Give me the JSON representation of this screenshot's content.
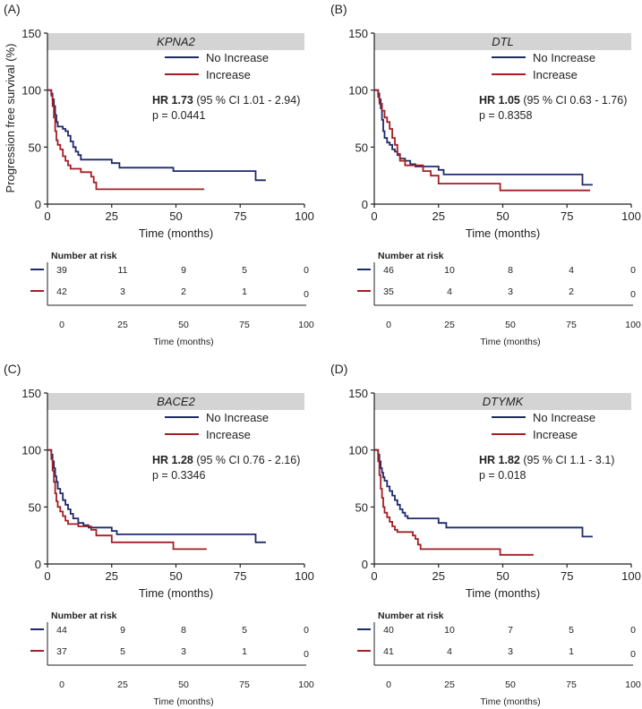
{
  "colors": {
    "no_increase": "#1f2a6b",
    "increase": "#a31f24",
    "header_bg": "#d4d4d4",
    "axis": "#222222"
  },
  "common": {
    "ylabel": "Progression free survival (%)",
    "xlabel": "Time (months)",
    "risk_title": "Number at risk",
    "risk_xlabel": "Time (months)",
    "legend_no_increase": "No Increase",
    "legend_increase": "Increase"
  },
  "chart_data": [
    {
      "type": "line",
      "panel_label": "(A)",
      "title": "KPNA2",
      "xlim": [
        0,
        100
      ],
      "ylim": [
        0,
        150
      ],
      "xticks": [
        "0",
        "25",
        "50",
        "75",
        "100"
      ],
      "yticks": [
        "0",
        "50",
        "100",
        "150"
      ],
      "hr_label": "HR 1.73",
      "hr_ci": "(95 % CI 1.01 - 2.94)",
      "p_text": "p = 0.0441",
      "series": [
        {
          "name": "No Increase",
          "points": [
            [
              0,
              100
            ],
            [
              1,
              100
            ],
            [
              1.5,
              97
            ],
            [
              2,
              92
            ],
            [
              2.5,
              86
            ],
            [
              3,
              78
            ],
            [
              3.5,
              72
            ],
            [
              4,
              68
            ],
            [
              5,
              68
            ],
            [
              6,
              66
            ],
            [
              7,
              64
            ],
            [
              8,
              60
            ],
            [
              9,
              55
            ],
            [
              10,
              50
            ],
            [
              11,
              46
            ],
            [
              12,
              43
            ],
            [
              13,
              39
            ],
            [
              15,
              39
            ],
            [
              18,
              39
            ],
            [
              20,
              39
            ],
            [
              24,
              39
            ],
            [
              25,
              36
            ],
            [
              28,
              32
            ],
            [
              40,
              32
            ],
            [
              48,
              32
            ],
            [
              49,
              29
            ],
            [
              60,
              29
            ],
            [
              70,
              29
            ],
            [
              80,
              29
            ],
            [
              81,
              21
            ],
            [
              85,
              21
            ]
          ]
        },
        {
          "name": "Increase",
          "points": [
            [
              0,
              100
            ],
            [
              1,
              100
            ],
            [
              1.5,
              95
            ],
            [
              2,
              86
            ],
            [
              2.5,
              76
            ],
            [
              3,
              64
            ],
            [
              3.5,
              56
            ],
            [
              4,
              52
            ],
            [
              5,
              48
            ],
            [
              6,
              42
            ],
            [
              7,
              38
            ],
            [
              8,
              34
            ],
            [
              9,
              31
            ],
            [
              12,
              31
            ],
            [
              13,
              28
            ],
            [
              16,
              28
            ],
            [
              17,
              24
            ],
            [
              18,
              19
            ],
            [
              19,
              13
            ],
            [
              30,
              13
            ],
            [
              40,
              13
            ],
            [
              50,
              13
            ],
            [
              61,
              13
            ]
          ]
        }
      ],
      "risk_table": {
        "times": [
          "0",
          "25",
          "50",
          "75",
          "100"
        ],
        "rows": [
          {
            "name": "No Increase",
            "values": [
              "39",
              "11",
              "9",
              "5",
              "0"
            ]
          },
          {
            "name": "Increase",
            "values": [
              "42",
              "3",
              "2",
              "1",
              "0"
            ]
          }
        ]
      }
    },
    {
      "type": "line",
      "panel_label": "(B)",
      "title": "DTL",
      "xlim": [
        0,
        100
      ],
      "ylim": [
        0,
        150
      ],
      "xticks": [
        "0",
        "25",
        "50",
        "75",
        "100"
      ],
      "yticks": [
        "0",
        "50",
        "100",
        "150"
      ],
      "hr_label": "HR 1.05",
      "hr_ci": "(95 % CI 0.63 - 1.76)",
      "p_text": "p = 0.8358",
      "series": [
        {
          "name": "No Increase",
          "points": [
            [
              0,
              100
            ],
            [
              1,
              100
            ],
            [
              1.5,
              97
            ],
            [
              2,
              92
            ],
            [
              2.5,
              84
            ],
            [
              3,
              74
            ],
            [
              3.5,
              64
            ],
            [
              4,
              58
            ],
            [
              5,
              54
            ],
            [
              6,
              52
            ],
            [
              7,
              48
            ],
            [
              8,
              46
            ],
            [
              9,
              43
            ],
            [
              10,
              40
            ],
            [
              12,
              38
            ],
            [
              14,
              35
            ],
            [
              16,
              33
            ],
            [
              20,
              33
            ],
            [
              25,
              30
            ],
            [
              27,
              26
            ],
            [
              40,
              26
            ],
            [
              50,
              26
            ],
            [
              60,
              26
            ],
            [
              70,
              26
            ],
            [
              80,
              26
            ],
            [
              81,
              17
            ],
            [
              85,
              17
            ]
          ]
        },
        {
          "name": "Increase",
          "points": [
            [
              0,
              100
            ],
            [
              1,
              100
            ],
            [
              1.5,
              94
            ],
            [
              2,
              88
            ],
            [
              3,
              82
            ],
            [
              4,
              76
            ],
            [
              5,
              72
            ],
            [
              6,
              66
            ],
            [
              7,
              58
            ],
            [
              8,
              52
            ],
            [
              9,
              44
            ],
            [
              10,
              38
            ],
            [
              12,
              34
            ],
            [
              18,
              34
            ],
            [
              19,
              29
            ],
            [
              22,
              25
            ],
            [
              25,
              18
            ],
            [
              30,
              18
            ],
            [
              40,
              18
            ],
            [
              48,
              18
            ],
            [
              49,
              12
            ],
            [
              60,
              12
            ],
            [
              70,
              12
            ],
            [
              84,
              12
            ]
          ]
        }
      ],
      "risk_table": {
        "times": [
          "0",
          "25",
          "50",
          "75",
          "100"
        ],
        "rows": [
          {
            "name": "No Increase",
            "values": [
              "46",
              "10",
              "8",
              "4",
              "0"
            ]
          },
          {
            "name": "Increase",
            "values": [
              "35",
              "4",
              "3",
              "2",
              "0"
            ]
          }
        ]
      }
    },
    {
      "type": "line",
      "panel_label": "(C)",
      "title": "BACE2",
      "xlim": [
        0,
        100
      ],
      "ylim": [
        0,
        150
      ],
      "xticks": [
        "0",
        "25",
        "50",
        "75",
        "100"
      ],
      "yticks": [
        "0",
        "50",
        "100",
        "150"
      ],
      "hr_label": "HR 1.28",
      "hr_ci": "(95 % CI 0.76 - 2.16)",
      "p_text": "p = 0.3346",
      "series": [
        {
          "name": "No Increase",
          "points": [
            [
              0,
              100
            ],
            [
              1,
              100
            ],
            [
              1.5,
              96
            ],
            [
              2,
              90
            ],
            [
              2.5,
              84
            ],
            [
              3,
              77
            ],
            [
              3.5,
              72
            ],
            [
              4,
              66
            ],
            [
              5,
              62
            ],
            [
              6,
              56
            ],
            [
              7,
              52
            ],
            [
              8,
              48
            ],
            [
              9,
              44
            ],
            [
              10,
              40
            ],
            [
              12,
              36
            ],
            [
              14,
              34
            ],
            [
              16,
              32
            ],
            [
              20,
              32
            ],
            [
              24,
              32
            ],
            [
              25,
              29
            ],
            [
              27,
              26
            ],
            [
              40,
              26
            ],
            [
              50,
              26
            ],
            [
              60,
              26
            ],
            [
              70,
              26
            ],
            [
              80,
              26
            ],
            [
              81,
              19
            ],
            [
              85,
              19
            ]
          ]
        },
        {
          "name": "Increase",
          "points": [
            [
              0,
              100
            ],
            [
              1,
              100
            ],
            [
              1.5,
              92
            ],
            [
              2,
              82
            ],
            [
              2.5,
              72
            ],
            [
              3,
              62
            ],
            [
              3.5,
              55
            ],
            [
              4,
              50
            ],
            [
              5,
              46
            ],
            [
              6,
              42
            ],
            [
              7,
              38
            ],
            [
              8,
              35
            ],
            [
              10,
              35
            ],
            [
              12,
              33
            ],
            [
              16,
              33
            ],
            [
              17,
              30
            ],
            [
              19,
              25
            ],
            [
              24,
              25
            ],
            [
              25,
              19
            ],
            [
              40,
              19
            ],
            [
              48,
              19
            ],
            [
              49,
              13
            ],
            [
              60,
              13
            ],
            [
              62,
              13
            ]
          ]
        }
      ],
      "risk_table": {
        "times": [
          "0",
          "25",
          "50",
          "75",
          "100"
        ],
        "rows": [
          {
            "name": "No Increase",
            "values": [
              "44",
              "9",
              "8",
              "5",
              "0"
            ]
          },
          {
            "name": "Increase",
            "values": [
              "37",
              "5",
              "3",
              "1",
              "0"
            ]
          }
        ]
      }
    },
    {
      "type": "line",
      "panel_label": "(D)",
      "title": "DTYMK",
      "xlim": [
        0,
        100
      ],
      "ylim": [
        0,
        150
      ],
      "xticks": [
        "0",
        "25",
        "50",
        "75",
        "100"
      ],
      "yticks": [
        "0",
        "50",
        "100",
        "150"
      ],
      "hr_label": "HR 1.82",
      "hr_ci": "(95 % CI 1.1 - 3.1)",
      "p_text": "p = 0.018",
      "series": [
        {
          "name": "No Increase",
          "points": [
            [
              0,
              100
            ],
            [
              1,
              100
            ],
            [
              1.5,
              96
            ],
            [
              2,
              90
            ],
            [
              2.5,
              84
            ],
            [
              3,
              80
            ],
            [
              3.5,
              76
            ],
            [
              4,
              73
            ],
            [
              5,
              68
            ],
            [
              6,
              64
            ],
            [
              7,
              60
            ],
            [
              8,
              56
            ],
            [
              9,
              52
            ],
            [
              10,
              48
            ],
            [
              11,
              45
            ],
            [
              12,
              42
            ],
            [
              13,
              40
            ],
            [
              20,
              40
            ],
            [
              24,
              40
            ],
            [
              25,
              36
            ],
            [
              28,
              32
            ],
            [
              40,
              32
            ],
            [
              50,
              32
            ],
            [
              60,
              32
            ],
            [
              70,
              32
            ],
            [
              80,
              32
            ],
            [
              81,
              24
            ],
            [
              85,
              24
            ]
          ]
        },
        {
          "name": "Increase",
          "points": [
            [
              0,
              100
            ],
            [
              1,
              100
            ],
            [
              1.5,
              90
            ],
            [
              2,
              78
            ],
            [
              2.5,
              66
            ],
            [
              3,
              58
            ],
            [
              3.5,
              50
            ],
            [
              4,
              45
            ],
            [
              5,
              41
            ],
            [
              6,
              37
            ],
            [
              7,
              33
            ],
            [
              8,
              30
            ],
            [
              9,
              28
            ],
            [
              14,
              28
            ],
            [
              15,
              25
            ],
            [
              16,
              22
            ],
            [
              17,
              17
            ],
            [
              18,
              13
            ],
            [
              30,
              13
            ],
            [
              40,
              13
            ],
            [
              48,
              13
            ],
            [
              49,
              8
            ],
            [
              60,
              8
            ],
            [
              62,
              8
            ]
          ]
        }
      ],
      "risk_table": {
        "times": [
          "0",
          "25",
          "50",
          "75",
          "100"
        ],
        "rows": [
          {
            "name": "No Increase",
            "values": [
              "40",
              "10",
              "7",
              "5",
              "0"
            ]
          },
          {
            "name": "Increase",
            "values": [
              "41",
              "4",
              "3",
              "1",
              "0"
            ]
          }
        ]
      }
    }
  ]
}
